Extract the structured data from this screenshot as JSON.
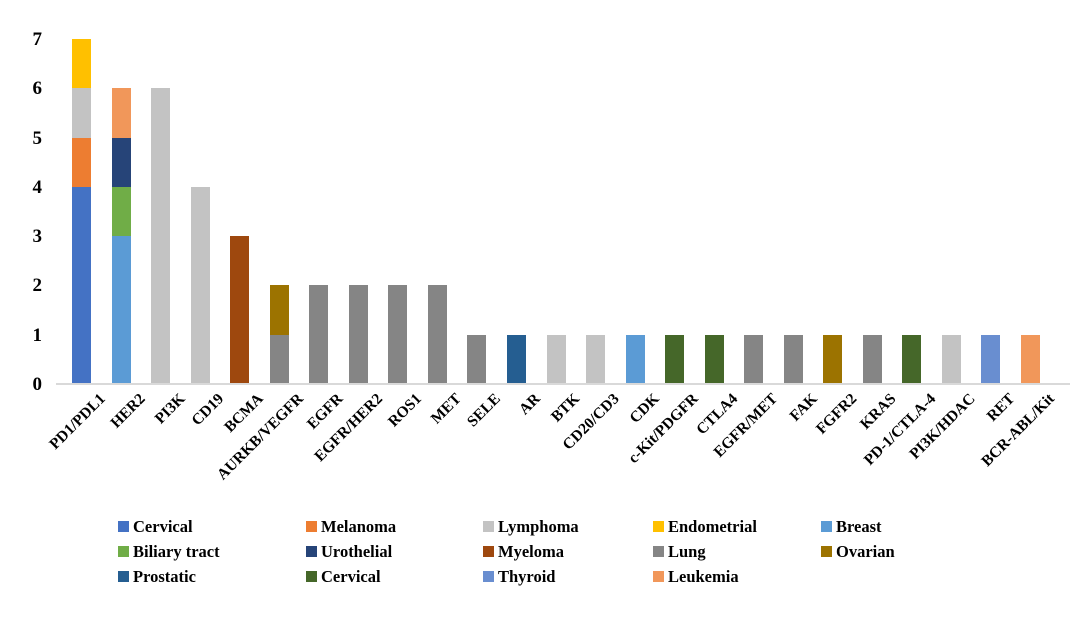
{
  "chart_data": {
    "type": "bar",
    "variant": "stacked-vertical",
    "title": "",
    "xlabel": "",
    "ylabel": "",
    "ylim": [
      0,
      7
    ],
    "yticks": [
      "0",
      "1",
      "2",
      "3",
      "4",
      "5",
      "6",
      "7"
    ],
    "grid": "off",
    "legend_position": "bottom",
    "axis_line_color": "#d9d9d9",
    "legend": [
      {
        "label": "Cervical",
        "color": "#4472C4"
      },
      {
        "label": "Melanoma",
        "color": "#ED7D31"
      },
      {
        "label": "Lymphoma",
        "color": "#C3C3C3"
      },
      {
        "label": "Endometrial",
        "color": "#FFC000"
      },
      {
        "label": "Breast",
        "color": "#5B9BD5"
      },
      {
        "label": "Biliary tract",
        "color": "#70AD47"
      },
      {
        "label": "Urothelial",
        "color": "#264478"
      },
      {
        "label": "Myeloma",
        "color": "#9E480E"
      },
      {
        "label": "Lung",
        "color": "#858585"
      },
      {
        "label": "Ovarian",
        "color": "#9C7300"
      },
      {
        "label": "Prostatic",
        "color": "#255E91"
      },
      {
        "label": "Cervical",
        "color": "#456729"
      },
      {
        "label": "Thyroid",
        "color": "#698ED0"
      },
      {
        "label": "Leukemia",
        "color": "#F1975A"
      }
    ],
    "legend_rows": [
      [
        0,
        1,
        2,
        3,
        4
      ],
      [
        5,
        6,
        7,
        8,
        9
      ],
      [
        10,
        11,
        12,
        13
      ]
    ],
    "bars": [
      {
        "category": "PD1/PDL1",
        "total": 7,
        "segments": [
          {
            "series": 0,
            "value": 4
          },
          {
            "series": 1,
            "value": 1
          },
          {
            "series": 2,
            "value": 1
          },
          {
            "series": 3,
            "value": 1
          }
        ]
      },
      {
        "category": "HER2",
        "total": 6,
        "segments": [
          {
            "series": 4,
            "value": 3
          },
          {
            "series": 5,
            "value": 1
          },
          {
            "series": 6,
            "value": 1
          },
          {
            "series": 13,
            "value": 1
          }
        ]
      },
      {
        "category": "PI3K",
        "total": 6,
        "segments": [
          {
            "series": 2,
            "value": 6
          }
        ]
      },
      {
        "category": "CD19",
        "total": 4,
        "segments": [
          {
            "series": 2,
            "value": 4
          }
        ]
      },
      {
        "category": "BCMA",
        "total": 3,
        "segments": [
          {
            "series": 7,
            "value": 3
          }
        ]
      },
      {
        "category": "AURKB/VEGFR",
        "total": 2,
        "segments": [
          {
            "series": 8,
            "value": 1
          },
          {
            "series": 9,
            "value": 1
          }
        ]
      },
      {
        "category": "EGFR",
        "total": 2,
        "segments": [
          {
            "series": 8,
            "value": 2
          }
        ]
      },
      {
        "category": "EGFR/HER2",
        "total": 2,
        "segments": [
          {
            "series": 8,
            "value": 2
          }
        ]
      },
      {
        "category": "ROS1",
        "total": 2,
        "segments": [
          {
            "series": 8,
            "value": 2
          }
        ]
      },
      {
        "category": "MET",
        "total": 2,
        "segments": [
          {
            "series": 8,
            "value": 2
          }
        ]
      },
      {
        "category": "SELE",
        "total": 1,
        "segments": [
          {
            "series": 8,
            "value": 1
          }
        ]
      },
      {
        "category": "AR",
        "total": 1,
        "segments": [
          {
            "series": 10,
            "value": 1
          }
        ]
      },
      {
        "category": "BTK",
        "total": 1,
        "segments": [
          {
            "series": 2,
            "value": 1
          }
        ]
      },
      {
        "category": "CD20/CD3",
        "total": 1,
        "segments": [
          {
            "series": 2,
            "value": 1
          }
        ]
      },
      {
        "category": "CDK",
        "total": 1,
        "segments": [
          {
            "series": 4,
            "value": 1
          }
        ]
      },
      {
        "category": "c-Kit/PDGFR",
        "total": 1,
        "segments": [
          {
            "series": 11,
            "value": 1
          }
        ]
      },
      {
        "category": "CTLA4",
        "total": 1,
        "segments": [
          {
            "series": 11,
            "value": 1
          }
        ]
      },
      {
        "category": "EGFR/MET",
        "total": 1,
        "segments": [
          {
            "series": 8,
            "value": 1
          }
        ]
      },
      {
        "category": "FAK",
        "total": 1,
        "segments": [
          {
            "series": 8,
            "value": 1
          }
        ]
      },
      {
        "category": "FGFR2",
        "total": 1,
        "segments": [
          {
            "series": 9,
            "value": 1
          }
        ]
      },
      {
        "category": "KRAS",
        "total": 1,
        "segments": [
          {
            "series": 8,
            "value": 1
          }
        ]
      },
      {
        "category": "PD-1/CTLA-4",
        "total": 1,
        "segments": [
          {
            "series": 11,
            "value": 1
          }
        ]
      },
      {
        "category": "PI3K/HDAC",
        "total": 1,
        "segments": [
          {
            "series": 2,
            "value": 1
          }
        ]
      },
      {
        "category": "RET",
        "total": 1,
        "segments": [
          {
            "series": 12,
            "value": 1
          }
        ]
      },
      {
        "category": "BCR-ABL/Kit",
        "total": 1,
        "segments": [
          {
            "series": 13,
            "value": 1
          }
        ]
      }
    ]
  }
}
